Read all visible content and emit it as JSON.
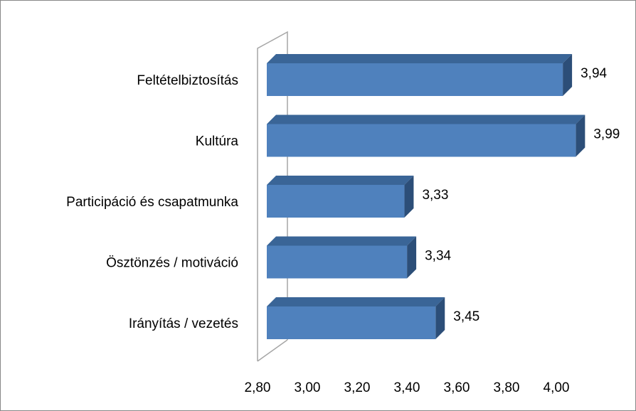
{
  "chart_data": {
    "type": "bar3d_horizontal",
    "categories": [
      "Feltételbiztosítás",
      "Kultúra",
      "Participáció és csapatmunka",
      "Ösztönzés / motiváció",
      "Irányítás / vezetés"
    ],
    "values": [
      3.94,
      3.99,
      3.33,
      3.34,
      3.45
    ],
    "value_labels": [
      "3,94",
      "3,99",
      "3,33",
      "3,34",
      "3,45"
    ],
    "color": "#4f81bd",
    "xlim": [
      2.8,
      4.0
    ],
    "xticks": [
      {
        "value": 2.8,
        "label": "2,80"
      },
      {
        "value": 3.0,
        "label": "3,00"
      },
      {
        "value": 3.2,
        "label": "3,20"
      },
      {
        "value": 3.4,
        "label": "3,40"
      },
      {
        "value": 3.6,
        "label": "3,60"
      },
      {
        "value": 3.8,
        "label": "3,80"
      },
      {
        "value": 4.0,
        "label": "4,00"
      }
    ]
  }
}
